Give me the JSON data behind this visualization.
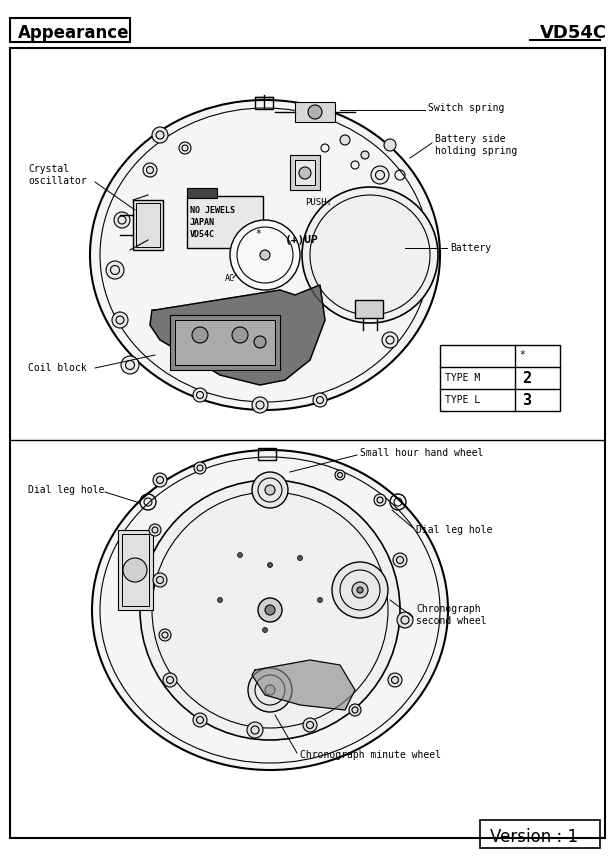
{
  "title_left": "Appearance",
  "title_right": "VD54C",
  "version": "Version : 1",
  "bg_color": "#ffffff",
  "border_color": "#000000",
  "labels_top_diagram": {
    "switch_spring": "Switch spring",
    "battery_side": "Battery side\nholding spring",
    "crystal_oscillator": "Crystal\noscillator",
    "battery": "Battery",
    "coil_block": "Coil block",
    "no_jewels": "NO JEWELS\nJAPAN\nVD54C",
    "push": "PUSH⇧",
    "plus_up": "(+)UP",
    "ac": "AC"
  },
  "labels_bottom_diagram": {
    "small_hour": "Small hour hand wheel",
    "dial_leg_hole_left": "Dial leg hole",
    "dial_leg_hole_right": "Dial leg hole",
    "chrono_second": "Chronograph\nsecond wheel",
    "chrono_minute": "Chronograph minute wheel"
  },
  "table": {
    "headers": [
      "",
      "*"
    ],
    "rows": [
      [
        "TYPE M",
        "2"
      ],
      [
        "TYPE L",
        "3"
      ]
    ]
  }
}
